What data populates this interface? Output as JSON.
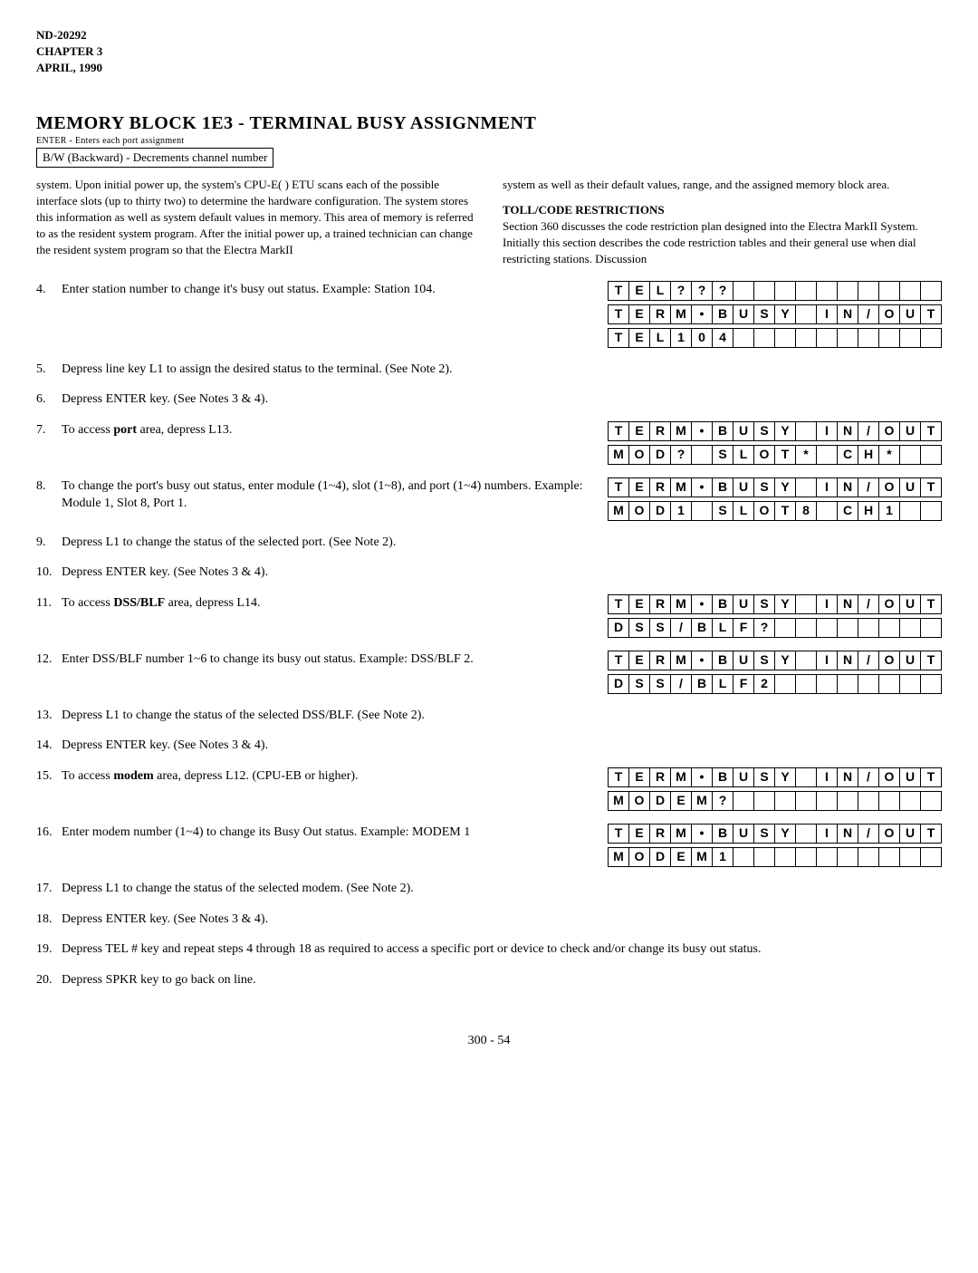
{
  "header": {
    "doc_id": "ND-20292",
    "chapter": "CHAPTER 3",
    "date": "APRIL, 1990"
  },
  "title": "MEMORY BLOCK 1E3 - TERMINAL BUSY ASSIGNMENT",
  "enter_note": "ENTER - Enters each port assignment",
  "bw_note": "B/W (Backward) - Decrements channel number",
  "left_para": "system. Upon initial power up, the system's CPU-E( ) ETU scans each of the possible interface slots (up to thirty two) to determine the hardware configuration. The system stores this information as well as system default values in memory. This area of memory is referred to as the resident system program. After the initial power up, a trained technician can change the resident system program so that the Electra MarkII",
  "right_para1": "system as well as their default values, range, and the assigned memory block area.",
  "toll_title": "TOLL/CODE RESTRICTIONS",
  "right_para2": "Section 360 discusses the code restriction plan designed into the Electra MarkII System. Initially this section describes the code restriction tables and their general use when dial restricting stations. Discussion",
  "steps": [
    {
      "n": 4,
      "text": "Enter station number to change it's busy out status. Example: Station 104.",
      "grids": [
        [
          "T",
          "E",
          "R",
          "M",
          "•",
          "B",
          "U",
          "S",
          "Y",
          "",
          "I",
          "N",
          "/",
          "O",
          "U",
          "T"
        ],
        [
          "T",
          "E",
          "L",
          "1",
          "0",
          "4",
          "",
          "",
          "",
          "",
          "",
          "",
          "",
          "",
          "",
          ""
        ]
      ],
      "pre_grid": [
        "T",
        "E",
        "L",
        "?",
        "?",
        "?",
        "",
        "",
        "",
        "",
        "",
        "",
        "",
        "",
        "",
        ""
      ]
    },
    {
      "n": 5,
      "text": "Depress line key L1 to assign the desired status to the terminal. (See Note 2)."
    },
    {
      "n": 6,
      "text": "Depress ENTER key. (See Notes 3 & 4)."
    },
    {
      "n": 7,
      "text": "To access port area, depress L13.",
      "bold_word": "port",
      "grids": [
        [
          "T",
          "E",
          "R",
          "M",
          "•",
          "B",
          "U",
          "S",
          "Y",
          "",
          "I",
          "N",
          "/",
          "O",
          "U",
          "T"
        ],
        [
          "M",
          "O",
          "D",
          "?",
          "",
          "S",
          "L",
          "O",
          "T",
          "*",
          "",
          "C",
          "H",
          "*",
          "",
          ""
        ]
      ]
    },
    {
      "n": 8,
      "text": "To change the port's busy out status, enter module (1~4), slot (1~8), and port (1~4) numbers. Example: Module 1, Slot 8, Port 1.",
      "grids": [
        [
          "T",
          "E",
          "R",
          "M",
          "•",
          "B",
          "U",
          "S",
          "Y",
          "",
          "I",
          "N",
          "/",
          "O",
          "U",
          "T"
        ],
        [
          "M",
          "O",
          "D",
          "1",
          "",
          "S",
          "L",
          "O",
          "T",
          "8",
          "",
          "C",
          "H",
          "1",
          "",
          ""
        ]
      ]
    },
    {
      "n": 9,
      "text": "Depress L1 to change the status of the selected port. (See Note 2)."
    },
    {
      "n": 10,
      "text": "Depress ENTER key. (See Notes 3 & 4)."
    },
    {
      "n": 11,
      "text": "To access DSS/BLF area, depress L14.",
      "bold_word": "DSS/BLF",
      "grids": [
        [
          "T",
          "E",
          "R",
          "M",
          "•",
          "B",
          "U",
          "S",
          "Y",
          "",
          "I",
          "N",
          "/",
          "O",
          "U",
          "T"
        ],
        [
          "D",
          "S",
          "S",
          "/",
          "B",
          "L",
          "F",
          "?",
          "",
          "",
          "",
          "",
          "",
          "",
          "",
          ""
        ]
      ]
    },
    {
      "n": 12,
      "text": "Enter DSS/BLF number 1~6 to change its busy out status. Example: DSS/BLF 2.",
      "grids": [
        [
          "T",
          "E",
          "R",
          "M",
          "•",
          "B",
          "U",
          "S",
          "Y",
          "",
          "I",
          "N",
          "/",
          "O",
          "U",
          "T"
        ],
        [
          "D",
          "S",
          "S",
          "/",
          "B",
          "L",
          "F",
          "2",
          "",
          "",
          "",
          "",
          "",
          "",
          "",
          ""
        ]
      ]
    },
    {
      "n": 13,
      "text": "Depress L1 to change the status of the selected DSS/BLF. (See Note 2)."
    },
    {
      "n": 14,
      "text": "Depress ENTER key. (See Notes 3 & 4)."
    },
    {
      "n": 15,
      "text": "To access modem area, depress L12. (CPU-EB or higher).",
      "bold_word": "modem",
      "grids": [
        [
          "T",
          "E",
          "R",
          "M",
          "•",
          "B",
          "U",
          "S",
          "Y",
          "",
          "I",
          "N",
          "/",
          "O",
          "U",
          "T"
        ],
        [
          "M",
          "O",
          "D",
          "E",
          "M",
          "?",
          "",
          "",
          "",
          "",
          "",
          "",
          "",
          "",
          "",
          ""
        ]
      ]
    },
    {
      "n": 16,
      "text": "Enter modem number (1~4) to change its Busy Out status. Example: MODEM 1",
      "grids": [
        [
          "T",
          "E",
          "R",
          "M",
          "•",
          "B",
          "U",
          "S",
          "Y",
          "",
          "I",
          "N",
          "/",
          "O",
          "U",
          "T"
        ],
        [
          "M",
          "O",
          "D",
          "E",
          "M",
          "1",
          "",
          "",
          "",
          "",
          "",
          "",
          "",
          "",
          "",
          ""
        ]
      ]
    },
    {
      "n": 17,
      "text": "Depress L1 to change the status of the selected modem. (See Note 2)."
    },
    {
      "n": 18,
      "text": "Depress ENTER key. (See Notes 3 & 4)."
    },
    {
      "n": 19,
      "text": "Depress TEL # key and repeat steps 4 through 18 as required to access a specific port or device to check and/or change its busy out status."
    },
    {
      "n": 20,
      "text": "Depress SPKR key to go back on line."
    }
  ],
  "footer": "300 - 54"
}
